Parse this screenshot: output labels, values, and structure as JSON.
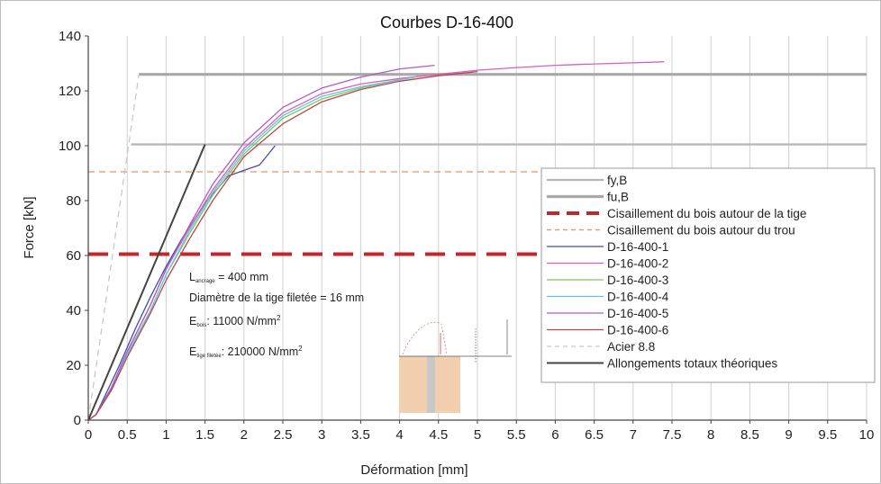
{
  "chart_data": {
    "type": "line",
    "title": "Courbes D-16-400",
    "xlabel": "Déformation [mm]",
    "ylabel": "Force [kN]",
    "xlim": [
      0,
      10
    ],
    "ylim": [
      0,
      140
    ],
    "xticks": [
      "0",
      "0.5",
      "1",
      "1.5",
      "2",
      "2.5",
      "3",
      "3.5",
      "4",
      "4.5",
      "5",
      "5.5",
      "6",
      "6.5",
      "7",
      "7.5",
      "8",
      "8.5",
      "9",
      "9.5",
      "10"
    ],
    "yticks": [
      "0",
      "20",
      "40",
      "60",
      "80",
      "100",
      "120",
      "140"
    ],
    "grid": "vertical",
    "legend_position": "right",
    "series": [
      {
        "name": "fy,B",
        "color": "#b5b5b5",
        "style": "solid",
        "width": 2.2,
        "x": [
          0.55,
          10
        ],
        "y": [
          100.5,
          100.5
        ]
      },
      {
        "name": "fu,B",
        "color": "#a8a8a8",
        "style": "solid",
        "width": 3.2,
        "x": [
          0.65,
          10
        ],
        "y": [
          126,
          126
        ]
      },
      {
        "name": "Cisaillement du bois autour de la tige",
        "color": "#c0282d",
        "style": "dash-heavy",
        "width": 4,
        "x": [
          0,
          10
        ],
        "y": [
          60.5,
          60.5
        ]
      },
      {
        "name": "Cisaillement du bois autour du trou",
        "color": "#e8935c",
        "style": "dash",
        "width": 1.3,
        "x": [
          0,
          10
        ],
        "y": [
          90.5,
          90.5
        ]
      },
      {
        "name": "D-16-400-1",
        "color": "#3f4ea8",
        "style": "solid",
        "width": 1.3,
        "x": [
          0,
          0.1,
          0.2,
          0.4,
          0.6,
          0.8,
          1.0,
          1.2,
          1.5,
          1.8,
          2.0,
          2.2,
          2.4
        ],
        "y": [
          0,
          2,
          8,
          20,
          33,
          45,
          56,
          66,
          79,
          89,
          91,
          93,
          100
        ]
      },
      {
        "name": "D-16-400-2",
        "color": "#d85ec0",
        "style": "solid",
        "width": 1.3,
        "x": [
          0,
          0.1,
          0.3,
          0.5,
          0.8,
          1.0,
          1.3,
          1.6,
          2.0,
          2.5,
          3.0,
          3.5,
          4.0,
          4.5,
          5.0,
          5.5,
          6.0,
          6.5,
          7.0,
          7.4
        ],
        "y": [
          0,
          2,
          12,
          25,
          42,
          55,
          70,
          84,
          99,
          112,
          119,
          122.5,
          124.5,
          126,
          127.5,
          128.5,
          129.3,
          129.8,
          130.2,
          130.6
        ]
      },
      {
        "name": "D-16-400-3",
        "color": "#7fc462",
        "style": "solid",
        "width": 1.3,
        "x": [
          0,
          0.1,
          0.3,
          0.5,
          0.8,
          1.0,
          1.3,
          1.6,
          2.0,
          2.5,
          3.0,
          3.5,
          4.0
        ],
        "y": [
          0,
          2,
          11,
          24,
          40,
          53,
          68,
          82,
          97,
          110,
          117,
          121,
          124
        ]
      },
      {
        "name": "D-16-400-4",
        "color": "#5fc8dd",
        "style": "solid",
        "width": 1.3,
        "x": [
          0,
          0.1,
          0.3,
          0.5,
          0.8,
          1.0,
          1.3,
          1.6,
          2.0,
          2.5,
          3.0,
          3.5,
          4.0,
          4.2
        ],
        "y": [
          0,
          2,
          11,
          24,
          40,
          53,
          69,
          83,
          98,
          111,
          118,
          121.5,
          124,
          125
        ]
      },
      {
        "name": "D-16-400-5",
        "color": "#b45ac6",
        "style": "solid",
        "width": 1.3,
        "x": [
          0,
          0.1,
          0.3,
          0.5,
          0.8,
          1.0,
          1.3,
          1.6,
          2.0,
          2.5,
          3.0,
          3.5,
          4.0,
          4.45
        ],
        "y": [
          0,
          2,
          12,
          25,
          42,
          55,
          71,
          86,
          101,
          114,
          121,
          125,
          128,
          129.3
        ]
      },
      {
        "name": "D-16-400-6",
        "color": "#b34a4a",
        "style": "solid",
        "width": 1.3,
        "x": [
          0,
          0.1,
          0.3,
          0.5,
          0.8,
          1.0,
          1.3,
          1.6,
          2.0,
          2.5,
          3.0,
          3.5,
          4.0,
          4.5,
          5.0
        ],
        "y": [
          0,
          2,
          11,
          23,
          39,
          51,
          66,
          80,
          96,
          108,
          116,
          120.5,
          123.5,
          125.5,
          127
        ]
      },
      {
        "name": "Acier 8.8",
        "color": "#c9c9c9",
        "style": "dash",
        "width": 1.3,
        "x": [
          0,
          0.52,
          0.65
        ],
        "y": [
          0,
          100.5,
          126
        ]
      },
      {
        "name": "Allongements totaux théoriques",
        "color": "#444444",
        "style": "solid",
        "width": 2,
        "x": [
          0,
          1.5
        ],
        "y": [
          0,
          100.5
        ]
      }
    ],
    "annotations": {
      "line1_main": "L",
      "line1_sub": "ancrage",
      "line1_rest": " = 400 mm",
      "line2": "Diamètre de la tige filetée = 16 mm",
      "line3_main": "E",
      "line3_sub": "bois",
      "line3_rest": ": 11000 N/mm",
      "line3_sup": "2",
      "line4_main": "E",
      "line4_sub": "tige filetée",
      "line4_rest": ": 210000 N/mm",
      "line4_sup": "2"
    }
  },
  "colors": {
    "plot_background": "#ffffff",
    "gridline": "#d0d0d0",
    "wood_block": "#f2cfae",
    "rod": "#c8c8c8"
  }
}
